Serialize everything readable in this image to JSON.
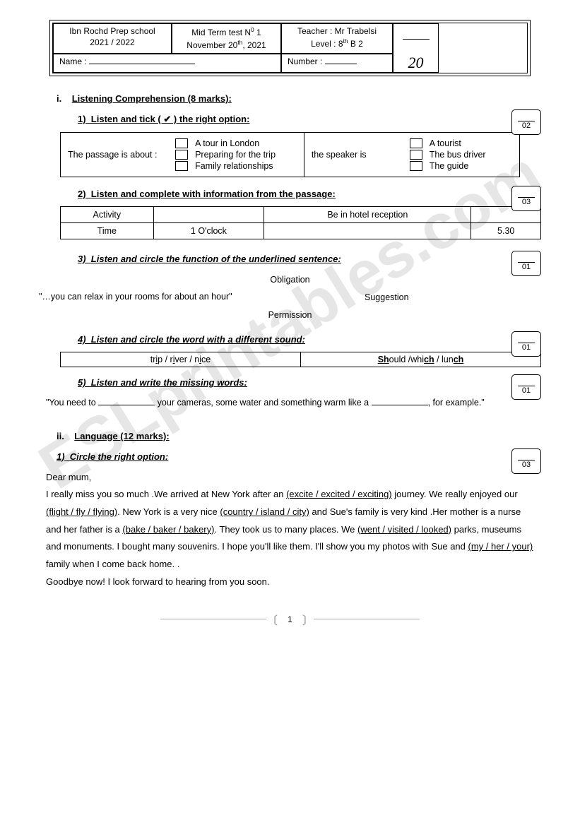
{
  "watermark": "ESLprintables.com",
  "header": {
    "school": "Ibn Rochd Prep school",
    "year": "2021 / 2022",
    "test_line1": "Mid  Term test N",
    "test_sup": "0",
    "test_num": " 1",
    "date_prefix": "November 20",
    "date_sup": "th",
    "date_suffix": ", 2021",
    "teacher": "Teacher : Mr Trabelsi",
    "level_prefix": "Level : 8",
    "level_sup": "th",
    "level_suffix": " B 2",
    "name_label": "Name :",
    "number_label": "Number :",
    "score_denom": "20"
  },
  "section1": {
    "roman": "i.",
    "title": "Listening Comprehension   (8 marks):",
    "q1": {
      "num": "1)",
      "title": "Listen and tick (  ✔  ) the right option:",
      "score": "02",
      "left_label": "The passage is about :",
      "left_opts": [
        "A tour in London",
        "Preparing for the trip",
        "Family relationships"
      ],
      "right_label": "the speaker is",
      "right_opts": [
        "A tourist",
        "The bus driver",
        "The guide"
      ]
    },
    "q2": {
      "num": "2)",
      "title": "Listen and complete with information from the passage:",
      "score": "03",
      "row1": [
        "Activity",
        "",
        "Be in hotel reception",
        ""
      ],
      "row2": [
        "Time",
        "1 O'clock",
        "",
        "5.30"
      ]
    },
    "q3": {
      "num": "3)",
      "title": "Listen and circle the function of the underlined sentence:",
      "score": "01",
      "quote": "\"…you can relax in your rooms for about an hour\"",
      "opts": [
        "Obligation",
        "Suggestion",
        "Permission"
      ]
    },
    "q4": {
      "num": "4)",
      "title": "Listen and circle the word with a different sound:",
      "score": "01",
      "cells_html": [
        "tr<u>i</u>p / r<u>i</u>ver / n<u>i</u>ce",
        "<b><u>Sh</u></b>ould /whi<b><u>ch</u></b> / lun<b><u>ch</u></b>"
      ]
    },
    "q5": {
      "num": "5)",
      "title": "Listen and write the missing words:",
      "score": "01",
      "text_pre": "\"You need to ",
      "text_mid": " your cameras, some water and something warm like a ",
      "text_post": ", for example.\""
    }
  },
  "section2": {
    "roman": "ii.",
    "title": "Language   (12 marks):",
    "q1": {
      "num": "1)",
      "title": "Circle the right option:",
      "score": "03",
      "greeting": "Dear mum,",
      "body_html": "I really miss you so much .We arrived at New York after an <span class='opt-u'>(excite / excited / exciting)</span> journey. We really enjoyed our <span class='opt-u'>(flight / fly / flying)</span>. New York is a very nice <span class='opt-u'>(country / island / city)</span> and Sue's family is very kind .Her mother is a nurse and her father is a <span class='opt-u'>(bake / baker / bakery)</span>. They took us to many places. We <span class='opt-u'>(went / visited / looked)</span> parks, museums and monuments. I bought many souvenirs. I hope you'll like them. I'll show you my photos with Sue and <span class='opt-u'>(my / her / your)</span> family when I come back home. .",
      "closing": "Goodbye now! I look forward to hearing from you soon."
    }
  },
  "page_number": "1"
}
